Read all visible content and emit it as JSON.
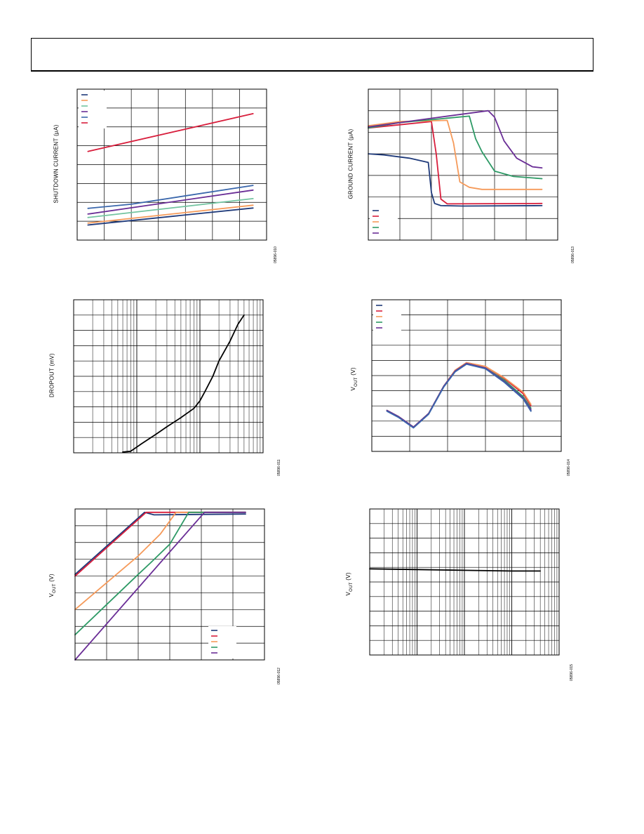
{
  "colors": {
    "navy": "#1f3a7a",
    "red": "#d81e3c",
    "orange": "#f59a5a",
    "green": "#2e9a66",
    "purple": "#6a2e96",
    "blue": "#3a67ac",
    "teal": "#72c4a0",
    "black": "#000000"
  },
  "chart_data": [
    {
      "id": "tl",
      "type": "line",
      "title": "",
      "xlabel": "",
      "ylabel": "SHUTDOWN CURRENT (µA)",
      "code": "05896-010",
      "grid": true,
      "xlim": [
        0,
        7
      ],
      "ylim": [
        0,
        8
      ],
      "xticks": [
        0,
        1,
        2,
        3,
        4,
        5,
        6,
        7
      ],
      "yticks": [
        0,
        1,
        2,
        3,
        4,
        5,
        6,
        7,
        8
      ],
      "legend": "top-left",
      "series": [
        {
          "color": "#d81e3c",
          "x": [
            0.4,
            6.5
          ],
          "y": [
            4.7,
            6.7
          ]
        },
        {
          "color": "#3a67ac",
          "x": [
            0.4,
            2,
            6.5
          ],
          "y": [
            1.68,
            1.9,
            2.9
          ]
        },
        {
          "color": "#6a2e96",
          "x": [
            0.4,
            6.5
          ],
          "y": [
            1.38,
            2.65
          ]
        },
        {
          "color": "#72c4a0",
          "x": [
            0.4,
            6.5
          ],
          "y": [
            1.2,
            2.2
          ]
        },
        {
          "color": "#f59a5a",
          "x": [
            0.4,
            6.5
          ],
          "y": [
            0.9,
            1.85
          ]
        },
        {
          "color": "#1f3a7a",
          "x": [
            0.4,
            6.5
          ],
          "y": [
            0.8,
            1.7
          ]
        }
      ],
      "legend_colors": [
        "#1f3a7a",
        "#f59a5a",
        "#72c4a0",
        "#6a2e96",
        "#3a67ac",
        "#d81e3c"
      ]
    },
    {
      "id": "tr",
      "type": "line",
      "title": "",
      "xlabel": "",
      "ylabel": "GROUND CURRENT (µA)",
      "code": "05896-013",
      "grid": true,
      "xlim": [
        0,
        6
      ],
      "ylim": [
        0,
        7
      ],
      "xticks": [
        0,
        1,
        2,
        3,
        4,
        5,
        6
      ],
      "yticks": [
        0,
        1,
        2,
        3,
        4,
        5,
        6,
        7
      ],
      "legend": "bottom-left",
      "series": [
        {
          "color": "#1f3a7a",
          "x": [
            0,
            0.5,
            1.3,
            1.9,
            2.0,
            2.1,
            2.3,
            3.0,
            5.5
          ],
          "y": [
            4.0,
            3.95,
            3.8,
            3.6,
            2.2,
            1.7,
            1.6,
            1.58,
            1.6
          ]
        },
        {
          "color": "#d81e3c",
          "x": [
            0,
            1.0,
            2.0,
            2.15,
            2.3,
            2.5,
            5.5
          ],
          "y": [
            5.2,
            5.35,
            5.5,
            4.0,
            1.9,
            1.68,
            1.7
          ]
        },
        {
          "color": "#f59a5a",
          "x": [
            0,
            1.0,
            2.5,
            2.7,
            2.9,
            3.2,
            3.6,
            5.5
          ],
          "y": [
            5.3,
            5.5,
            5.55,
            4.5,
            2.7,
            2.45,
            2.35,
            2.35
          ]
        },
        {
          "color": "#2e9a66",
          "x": [
            0,
            1.0,
            3.2,
            3.4,
            3.6,
            4.0,
            4.6,
            5.5
          ],
          "y": [
            5.2,
            5.45,
            5.75,
            4.7,
            4.1,
            3.2,
            2.95,
            2.85
          ]
        },
        {
          "color": "#6a2e96",
          "x": [
            0,
            1.0,
            2.0,
            3.8,
            4.0,
            4.3,
            4.7,
            5.2,
            5.5
          ],
          "y": [
            5.25,
            5.45,
            5.65,
            6.0,
            5.7,
            4.6,
            3.8,
            3.4,
            3.35
          ]
        }
      ],
      "legend_colors": [
        "#1f3a7a",
        "#d81e3c",
        "#f59a5a",
        "#2e9a66",
        "#6a2e96"
      ]
    },
    {
      "id": "ml",
      "type": "line",
      "title": "",
      "xlabel": "",
      "ylabel": "DROPOUT (mV)",
      "code": "05896-011",
      "grid": true,
      "xscale": "log",
      "xlim": [
        0.1,
        100
      ],
      "ylim": [
        0,
        10
      ],
      "yticks": [
        0,
        1,
        2,
        3,
        4,
        5,
        6,
        7,
        8,
        9,
        10
      ],
      "legend": "none",
      "series": [
        {
          "color": "#000000",
          "x": [
            0.6,
            0.8,
            1.2,
            2,
            3,
            5,
            8,
            10,
            12,
            16,
            20,
            30,
            40,
            50
          ],
          "y": [
            0.05,
            0.1,
            0.6,
            1.2,
            1.7,
            2.3,
            2.9,
            3.4,
            4.0,
            5.0,
            6.0,
            7.3,
            8.4,
            9.0
          ]
        }
      ]
    },
    {
      "id": "mr",
      "type": "line",
      "title": "",
      "xlabel": "",
      "ylabel": "VOUT (V)",
      "ylabel_main": "V",
      "ylabel_sub": "OUT",
      "ylabel_unit": " (V)",
      "code": "05896-014",
      "grid": true,
      "xlim": [
        0,
        5
      ],
      "ylim": [
        0,
        10
      ],
      "xticks": [
        0,
        1,
        2,
        3,
        4,
        5
      ],
      "yticks": [
        0,
        1,
        2,
        3,
        4,
        5,
        6,
        7,
        8,
        9,
        10
      ],
      "legend": "top-left",
      "series": [
        {
          "color": "#1f3a7a",
          "x": [
            0.4,
            0.7,
            1.1,
            1.5,
            1.9,
            2.2,
            2.5,
            3.0,
            3.5,
            4.0,
            4.2
          ],
          "y": [
            2.7,
            2.3,
            1.6,
            2.5,
            4.3,
            5.3,
            5.8,
            5.5,
            4.6,
            3.5,
            2.7
          ]
        },
        {
          "color": "#d81e3c",
          "x": [
            0.4,
            0.7,
            1.1,
            1.5,
            1.9,
            2.2,
            2.5,
            3.0,
            3.5,
            4.0,
            4.2
          ],
          "y": [
            2.7,
            2.3,
            1.6,
            2.5,
            4.3,
            5.35,
            5.85,
            5.6,
            4.8,
            3.8,
            3.0
          ]
        },
        {
          "color": "#f59a5a",
          "x": [
            0.4,
            0.7,
            1.1,
            1.5,
            1.9,
            2.2,
            2.5,
            3.0,
            3.5,
            4.0,
            4.2
          ],
          "y": [
            2.7,
            2.3,
            1.6,
            2.5,
            4.3,
            5.35,
            5.85,
            5.6,
            4.85,
            3.9,
            3.1
          ]
        },
        {
          "color": "#2e9a66",
          "x": [
            0.4,
            0.7,
            1.1,
            1.5,
            1.9,
            2.2,
            2.5,
            3.0,
            3.5,
            4.0,
            4.2
          ],
          "y": [
            2.7,
            2.3,
            1.6,
            2.5,
            4.3,
            5.3,
            5.8,
            5.5,
            4.7,
            3.6,
            2.85
          ]
        },
        {
          "color": "#6a2e96",
          "x": [
            0.4,
            0.7,
            1.1,
            1.5,
            1.9,
            2.2,
            2.5,
            3.0,
            3.5,
            4.0,
            4.2
          ],
          "y": [
            2.7,
            2.3,
            1.6,
            2.5,
            4.3,
            5.3,
            5.8,
            5.5,
            4.6,
            3.5,
            2.75
          ]
        },
        {
          "color": "#3a67ac",
          "x": [
            0.4,
            0.7,
            1.1,
            1.5,
            1.9,
            2.2,
            2.5,
            3.0,
            3.5,
            4.0,
            4.2
          ],
          "y": [
            2.65,
            2.25,
            1.55,
            2.45,
            4.25,
            5.25,
            5.75,
            5.45,
            4.55,
            3.45,
            2.65
          ]
        }
      ],
      "legend_colors": [
        "#1f3a7a",
        "#d81e3c",
        "#f59a5a",
        "#2e9a66",
        "#6a2e96"
      ]
    },
    {
      "id": "bl",
      "type": "line",
      "title": "",
      "xlabel": "",
      "ylabel": "VOUT (V)",
      "ylabel_main": "V",
      "ylabel_sub": "OUT",
      "ylabel_unit": " (V)",
      "code": "05896-012",
      "grid": true,
      "xlim": [
        0,
        6
      ],
      "ylim": [
        0,
        9
      ],
      "xticks": [
        0,
        1,
        2,
        3,
        4,
        5,
        6
      ],
      "yticks": [
        0,
        1,
        2,
        3,
        4,
        5,
        6,
        7,
        8,
        9
      ],
      "legend": "bottom-right",
      "series": [
        {
          "color": "#1f3a7a",
          "x": [
            0,
            2.2,
            2.5,
            5.4
          ],
          "y": [
            5.1,
            8.8,
            8.65,
            8.7
          ]
        },
        {
          "color": "#d81e3c",
          "x": [
            0,
            2.25,
            5.4
          ],
          "y": [
            5.0,
            8.8,
            8.8
          ]
        },
        {
          "color": "#f59a5a",
          "x": [
            0,
            1.0,
            2.0,
            2.7,
            3.2,
            5.4
          ],
          "y": [
            3.0,
            4.6,
            6.2,
            7.5,
            8.8,
            8.8
          ]
        },
        {
          "color": "#2e9a66",
          "x": [
            0,
            1.0,
            2.0,
            2.4,
            3.0,
            3.6,
            5.4
          ],
          "y": [
            1.5,
            3.3,
            5.1,
            5.8,
            6.9,
            8.8,
            8.8
          ]
        },
        {
          "color": "#6a2e96",
          "x": [
            0,
            4.1,
            5.4
          ],
          "y": [
            0,
            8.8,
            8.8
          ]
        }
      ],
      "legend_colors": [
        "#1f3a7a",
        "#d81e3c",
        "#f59a5a",
        "#2e9a66",
        "#6a2e96"
      ]
    },
    {
      "id": "br",
      "type": "line",
      "title": "",
      "xlabel": "",
      "ylabel": "VOUT (V)",
      "ylabel_main": "V",
      "ylabel_sub": "OUT",
      "ylabel_unit": " (V)",
      "code": "05896-015",
      "grid": true,
      "xscale": "log",
      "xlim": [
        1,
        10000
      ],
      "ylim": [
        0,
        10
      ],
      "yticks": [
        0,
        1,
        2,
        3,
        4,
        5,
        6,
        7,
        8,
        9,
        10
      ],
      "legend": "none",
      "series": [
        {
          "color": "#000000",
          "x": [
            1,
            10,
            100,
            1000,
            4000
          ],
          "y": [
            5.9,
            5.85,
            5.8,
            5.75,
            5.75
          ]
        }
      ]
    }
  ]
}
